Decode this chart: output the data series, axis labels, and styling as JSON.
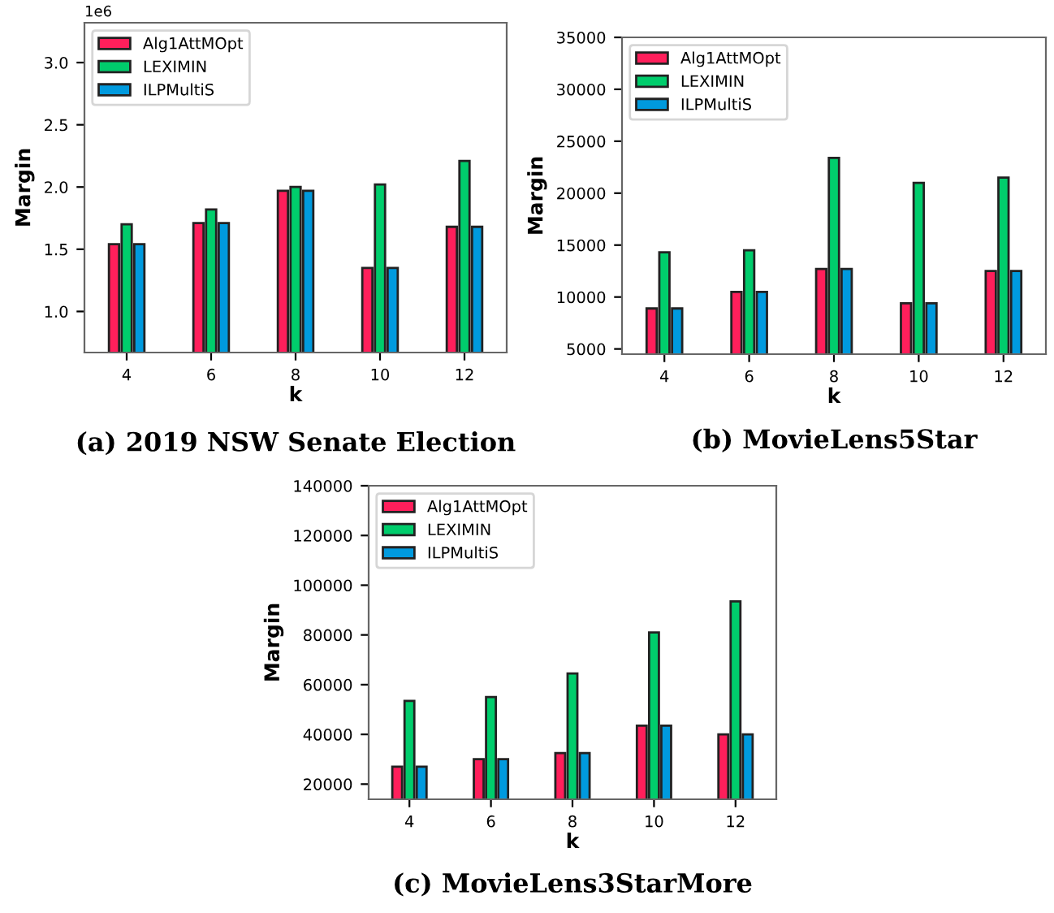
{
  "chart_data": [
    {
      "type": "bar",
      "title": "(a) 2019 NSW Senate Election",
      "xlabel": "k",
      "ylabel": "Margin",
      "categories": [
        "4",
        "6",
        "8",
        "10",
        "12"
      ],
      "series": [
        {
          "name": "Alg1AttMOpt",
          "color": "#ff1f5b",
          "values": [
            1.54,
            1.71,
            1.97,
            1.35,
            1.68
          ]
        },
        {
          "name": "LEXIMIN",
          "color": "#00cd6c",
          "values": [
            1.7,
            1.82,
            2.0,
            2.02,
            2.21
          ]
        },
        {
          "name": "ILPMultiS",
          "color": "#009ade",
          "values": [
            1.54,
            1.71,
            1.97,
            1.35,
            1.68
          ]
        }
      ],
      "ylim": [
        0.67,
        3.32
      ],
      "yticks": [
        {
          "value": 1,
          "label": "1.0"
        },
        1.5,
        {
          "value": 2,
          "label": "2.0"
        },
        2.5,
        {
          "value": 3,
          "label": "3.0"
        }
      ],
      "annotations": [
        "1e6"
      ],
      "legend": "top left",
      "grid": false
    },
    {
      "type": "bar",
      "title": "(b) MovieLens5Star",
      "xlabel": "k",
      "ylabel": "Margin",
      "categories": [
        "4",
        "6",
        "8",
        "10",
        "12"
      ],
      "series": [
        {
          "name": "Alg1AttMOpt",
          "color": "#ff1f5b",
          "values": [
            8900,
            10500,
            12700,
            9400,
            12500
          ]
        },
        {
          "name": "LEXIMIN",
          "color": "#00cd6c",
          "values": [
            14300,
            14500,
            23400,
            21000,
            21500
          ]
        },
        {
          "name": "ILPMultiS",
          "color": "#009ade",
          "values": [
            8900,
            10500,
            12700,
            9400,
            12500
          ]
        }
      ],
      "ylim": [
        4500,
        35000
      ],
      "yticks": [
        5000,
        10000,
        15000,
        20000,
        25000,
        30000,
        35000
      ],
      "legend": "top left",
      "grid": false
    },
    {
      "type": "bar",
      "title": "(c) MovieLens3StarMore",
      "xlabel": "k",
      "ylabel": "Margin",
      "categories": [
        "4",
        "6",
        "8",
        "10",
        "12"
      ],
      "series": [
        {
          "name": "Alg1AttMOpt",
          "color": "#ff1f5b",
          "values": [
            27000,
            30000,
            32500,
            43500,
            40000
          ]
        },
        {
          "name": "LEXIMIN",
          "color": "#00cd6c",
          "values": [
            53500,
            55000,
            64500,
            81000,
            93500
          ]
        },
        {
          "name": "ILPMultiS",
          "color": "#009ade",
          "values": [
            27000,
            30000,
            32500,
            43500,
            40000
          ]
        }
      ],
      "ylim": [
        13900,
        140000
      ],
      "yticks": [
        20000,
        40000,
        60000,
        80000,
        100000,
        120000,
        140000
      ],
      "legend": "top left",
      "grid": false
    }
  ]
}
